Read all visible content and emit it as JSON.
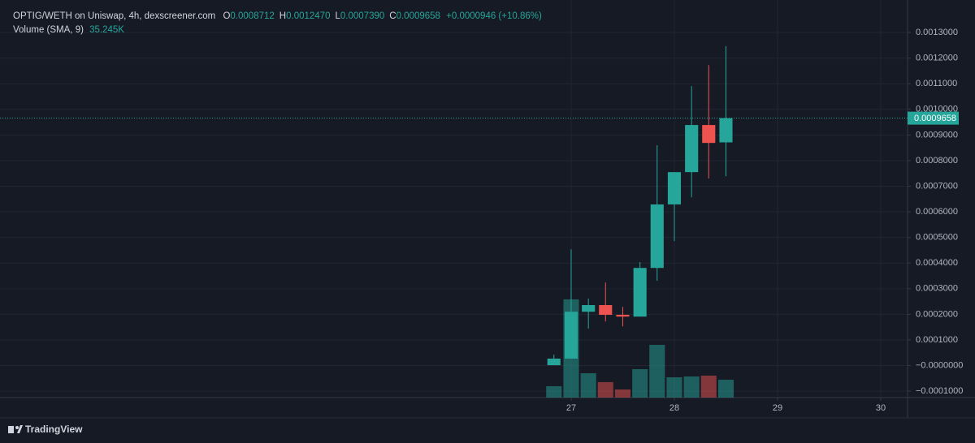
{
  "chart_data": {
    "type": "candlestick",
    "legend": {
      "title": "OPTIG/WETH on Uniswap, 4h, dexscreener.com",
      "ohlc": [
        {
          "key": "O",
          "value": "0.0008712"
        },
        {
          "key": "H",
          "value": "0.0012470"
        },
        {
          "key": "L",
          "value": "0.0007390"
        },
        {
          "key": "C",
          "value": "0.0009658"
        }
      ],
      "change": "+0.0000946 (+10.86%)",
      "volume_label": "Volume (SMA, 9)",
      "volume_sma": "35.245K"
    },
    "x": [
      26.833,
      27,
      27.167,
      27.333,
      27.5,
      27.667,
      27.833,
      28,
      28.167,
      28.333,
      28.5
    ],
    "open": [
      1.4e-06,
      2.7e-05,
      0.00021,
      0.000236,
      0.000198,
      0.000191,
      0.000381,
      0.000629,
      0.000755,
      0.000939,
      0.0008712
    ],
    "high": [
      4.25e-05,
      0.000454,
      0.000261,
      0.000324,
      0.000229,
      0.000404,
      0.00086,
      0.000755,
      0.001091,
      0.001173,
      0.001247
    ],
    "low": [
      1.4e-06,
      2.7e-05,
      0.000144,
      0.000172,
      0.000153,
      0.000191,
      0.000331,
      0.000486,
      0.000657,
      0.00073,
      0.000739
    ],
    "close": [
      2.7e-05,
      0.00021,
      0.000236,
      0.000198,
      0.000191,
      0.000381,
      0.000629,
      0.000755,
      0.000939,
      0.000869,
      0.0009658
    ],
    "volume": [
      17100,
      148200,
      36700,
      23300,
      12200,
      42900,
      79600,
      30600,
      31800,
      33100,
      26900
    ],
    "up_color": "#26a69a",
    "down_color": "#ef5350",
    "xlim": [
      21.465,
      30.26
    ],
    "xticks": [
      27,
      28,
      29,
      30
    ],
    "ylim": [
      -0.000125,
      0.001427
    ],
    "yticks": [
      {
        "value": 0.0013,
        "label": "0.0013000"
      },
      {
        "value": 0.0012,
        "label": "0.0012000"
      },
      {
        "value": 0.0011,
        "label": "0.0011000"
      },
      {
        "value": 0.001,
        "label": "0.0010000"
      },
      {
        "value": 0.0009,
        "label": "0.0009000"
      },
      {
        "value": 0.0008,
        "label": "0.0008000"
      },
      {
        "value": 0.0007,
        "label": "0.0007000"
      },
      {
        "value": 0.0006,
        "label": "0.0006000"
      },
      {
        "value": 0.0005,
        "label": "0.0005000"
      },
      {
        "value": 0.0004,
        "label": "0.0004000"
      },
      {
        "value": 0.0003,
        "label": "0.0003000"
      },
      {
        "value": 0.0002,
        "label": "0.0002000"
      },
      {
        "value": 0.0001,
        "label": "0.0001000"
      },
      {
        "value": 0,
        "label": "−0.0000000"
      },
      {
        "value": -0.0001,
        "label": "−0.0001000"
      }
    ],
    "y2lim": [
      0,
      600000
    ],
    "grid": true,
    "brand": "TradingView"
  }
}
